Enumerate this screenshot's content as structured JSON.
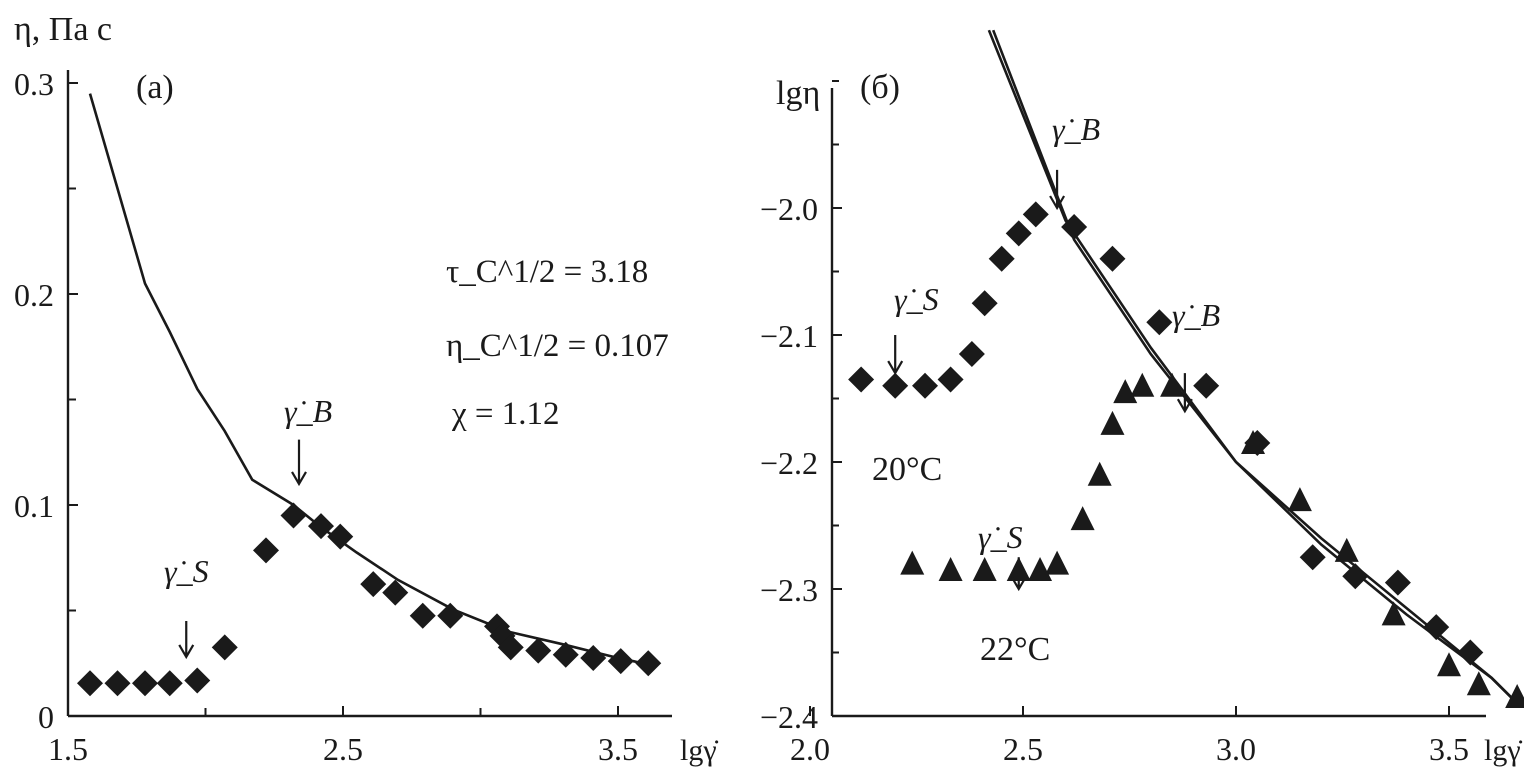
{
  "chart_data": [
    {
      "panel": "(a)",
      "type": "scatter",
      "ylabel": "η, Па с",
      "xlabel": "lgγ̇",
      "xlim": [
        1.5,
        3.8
      ],
      "ylim": [
        0,
        0.3
      ],
      "xticks": [
        1.5,
        2.5,
        3.5
      ],
      "xtick_labels": [
        "1.5",
        "2.5",
        "3.5"
      ],
      "yticks": [
        0,
        0.1,
        0.2,
        0.3
      ],
      "ytick_labels": [
        "0",
        "0.1",
        "0.2",
        "0.3"
      ],
      "params": [
        "τ_C^1/2 = 3.18",
        "η_C^1/2 = 0.107",
        "χ = 1.12"
      ],
      "annotations": [
        {
          "label": "γ̇_S",
          "x": 1.93,
          "arrow_from": 0.045,
          "arrow_to": 0.028,
          "label_y": 0.068
        },
        {
          "label": "γ̇_B",
          "x": 2.34,
          "arrow_from": 0.131,
          "arrow_to": 0.11,
          "label_y": 0.145
        }
      ],
      "series": [
        {
          "name": "data",
          "marker": "diamond",
          "x": [
            1.58,
            1.68,
            1.78,
            1.87,
            1.97,
            2.07,
            2.22,
            2.32,
            2.42,
            2.49,
            2.61,
            2.69,
            2.79,
            2.89,
            3.06,
            3.08,
            3.11,
            3.21,
            3.31,
            3.41,
            3.51,
            3.61
          ],
          "y": [
            0.0155,
            0.0155,
            0.0155,
            0.0155,
            0.0168,
            0.0325,
            0.0785,
            0.095,
            0.09,
            0.085,
            0.0625,
            0.0585,
            0.0475,
            0.0475,
            0.0425,
            0.038,
            0.0325,
            0.031,
            0.029,
            0.0275,
            0.026,
            0.025
          ]
        },
        {
          "name": "fit",
          "type": "line",
          "x": [
            1.58,
            1.68,
            1.78,
            1.87,
            1.97,
            2.07,
            2.17,
            2.32,
            2.42,
            2.55,
            2.7,
            2.9,
            3.1,
            3.3,
            3.5,
            3.61
          ],
          "y": [
            0.295,
            0.25,
            0.205,
            0.182,
            0.155,
            0.135,
            0.112,
            0.1,
            0.0895,
            0.0775,
            0.0645,
            0.0505,
            0.04,
            0.034,
            0.0275,
            0.0245
          ]
        }
      ]
    },
    {
      "panel": "(б)",
      "type": "scatter",
      "ylabel": "lgη",
      "xlabel": "lgγ̇",
      "xlim": [
        2.0,
        3.7
      ],
      "ylim": [
        -2.4,
        -1.83
      ],
      "xticks": [
        2.0,
        2.5,
        3.0,
        3.5
      ],
      "xtick_labels": [
        "2.0",
        "2.5",
        "3.0",
        "3.5"
      ],
      "yticks": [
        -2.4,
        -2.3,
        -2.2,
        -2.1,
        -2.0
      ],
      "ytick_labels": [
        "−2.4",
        "−2.3",
        "−2.2",
        "−2.1",
        "−2.0"
      ],
      "labels": [
        "20°C",
        "22°C"
      ],
      "annotations": [
        {
          "label": "γ̇_S",
          "x": 2.2,
          "arrow_from": -2.1,
          "arrow_to": -2.13,
          "label_y": -2.075
        },
        {
          "label": "γ̇_B",
          "x": 2.58,
          "arrow_from": -1.97,
          "arrow_to": -2.0,
          "label_y": -1.945
        },
        {
          "label": "γ̇_S",
          "x": 2.49,
          "arrow_from": -2.275,
          "arrow_to": -2.3,
          "label_y": -2.245
        },
        {
          "label": "γ̇_B",
          "x": 2.88,
          "arrow_from": -2.13,
          "arrow_to": -2.16,
          "label_y": -2.09
        }
      ],
      "series": [
        {
          "name": "20°C",
          "marker": "diamond",
          "x": [
            2.12,
            2.2,
            2.27,
            2.33,
            2.38,
            2.41,
            2.45,
            2.49,
            2.53,
            2.62,
            2.71,
            2.82,
            2.93,
            3.05,
            3.18,
            3.28,
            3.38,
            3.47,
            3.55
          ],
          "y": [
            -2.135,
            -2.14,
            -2.14,
            -2.135,
            -2.115,
            -2.075,
            -2.04,
            -2.02,
            -2.005,
            -2.015,
            -2.04,
            -2.09,
            -2.14,
            -2.185,
            -2.275,
            -2.29,
            -2.295,
            -2.33,
            -2.35
          ]
        },
        {
          "name": "22°C",
          "marker": "triangle",
          "x": [
            2.24,
            2.33,
            2.41,
            2.49,
            2.54,
            2.58,
            2.64,
            2.68,
            2.71,
            2.74,
            2.78,
            2.85,
            3.04,
            3.15,
            3.26,
            3.37,
            3.5,
            3.57,
            3.66
          ],
          "y": [
            -2.28,
            -2.285,
            -2.285,
            -2.285,
            -2.285,
            -2.28,
            -2.245,
            -2.21,
            -2.17,
            -2.145,
            -2.14,
            -2.14,
            -2.185,
            -2.23,
            -2.27,
            -2.32,
            -2.36,
            -2.375,
            -2.385
          ]
        },
        {
          "name": "fit-20°C",
          "type": "line",
          "x": [
            2.42,
            2.6,
            2.8,
            3.0,
            3.2,
            3.4,
            3.6,
            3.66
          ],
          "y": [
            -1.86,
            -2.01,
            -2.11,
            -2.2,
            -2.26,
            -2.315,
            -2.37,
            -2.39
          ]
        },
        {
          "name": "fit-22°C",
          "type": "line",
          "x": [
            2.43,
            2.62,
            2.8,
            3.0,
            3.2,
            3.4,
            3.6,
            3.66
          ],
          "y": [
            -1.86,
            -2.025,
            -2.115,
            -2.2,
            -2.265,
            -2.32,
            -2.37,
            -2.39
          ]
        }
      ]
    }
  ]
}
